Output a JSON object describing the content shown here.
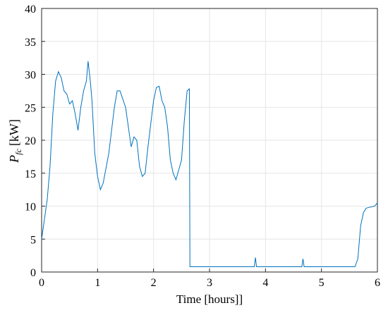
{
  "chart_data": {
    "type": "line",
    "x_label": "Time [hours]]",
    "y_label": {
      "symbol": "P",
      "subscript": "fc",
      "unit": "[kW]"
    },
    "xlim": [
      0,
      6
    ],
    "xticks": [
      0,
      1,
      2,
      3,
      4,
      5,
      6
    ],
    "ylim": [
      0,
      40
    ],
    "yticks": [
      0,
      5,
      10,
      15,
      20,
      25,
      30,
      35,
      40
    ],
    "grid": true,
    "series": [
      {
        "color": "#0072bd",
        "x": [
          0,
          0.05,
          0.1,
          0.15,
          0.2,
          0.25,
          0.3,
          0.35,
          0.4,
          0.45,
          0.5,
          0.55,
          0.6,
          0.65,
          0.7,
          0.75,
          0.8,
          0.83,
          0.87,
          0.9,
          0.95,
          1.0,
          1.05,
          1.1,
          1.2,
          1.3,
          1.35,
          1.4,
          1.5,
          1.55,
          1.6,
          1.65,
          1.7,
          1.75,
          1.8,
          1.85,
          1.9,
          2.0,
          2.05,
          2.1,
          2.15,
          2.2,
          2.25,
          2.3,
          2.35,
          2.4,
          2.5,
          2.55,
          2.6,
          2.64,
          2.65,
          3.0,
          3.8,
          3.82,
          3.84,
          4.65,
          4.67,
          4.69,
          5.6,
          5.65,
          5.7,
          5.75,
          5.8,
          5.9,
          5.95,
          6.0
        ],
        "values": [
          5,
          8,
          11,
          16,
          24,
          29,
          30.4,
          29.5,
          27.5,
          27,
          25.5,
          26,
          24,
          21.5,
          25,
          27.5,
          29,
          32,
          29,
          26,
          18,
          14.5,
          12.5,
          13.5,
          18,
          25,
          27.5,
          27.5,
          25,
          22,
          19,
          20.5,
          20,
          16,
          14.5,
          15,
          19,
          26,
          28,
          28.2,
          26,
          25,
          22,
          17,
          15,
          14,
          17,
          23,
          27.5,
          27.8,
          0.8,
          0.8,
          0.8,
          2.2,
          0.8,
          0.8,
          2,
          0.8,
          0.8,
          2,
          7,
          9,
          9.7,
          9.9,
          10,
          10.5
        ]
      }
    ]
  }
}
